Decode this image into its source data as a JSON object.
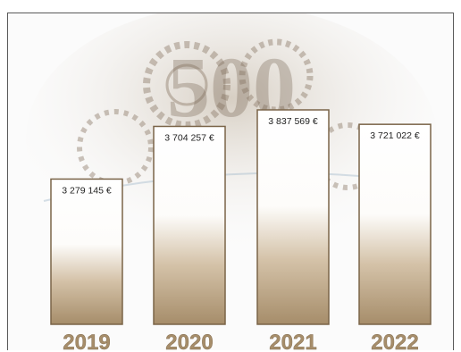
{
  "chart_data": {
    "type": "bar",
    "categories": [
      "2019",
      "2020",
      "2021",
      "2022"
    ],
    "values": [
      3279145,
      3704257,
      3837569,
      3721022
    ],
    "data_labels": [
      "3 279 145 €",
      "3 704 257 €",
      "3 837 569 €",
      "3 721 022 €"
    ],
    "title": "",
    "xlabel": "",
    "ylabel": "",
    "grid": false,
    "legend": "none",
    "bar_fill_top": "#ffffff",
    "bar_fill_bottom": "#a68d6a",
    "bar_border": "#7a6448",
    "category_label_color": "#a68d6a",
    "background_motif": "banknote-watermark"
  }
}
